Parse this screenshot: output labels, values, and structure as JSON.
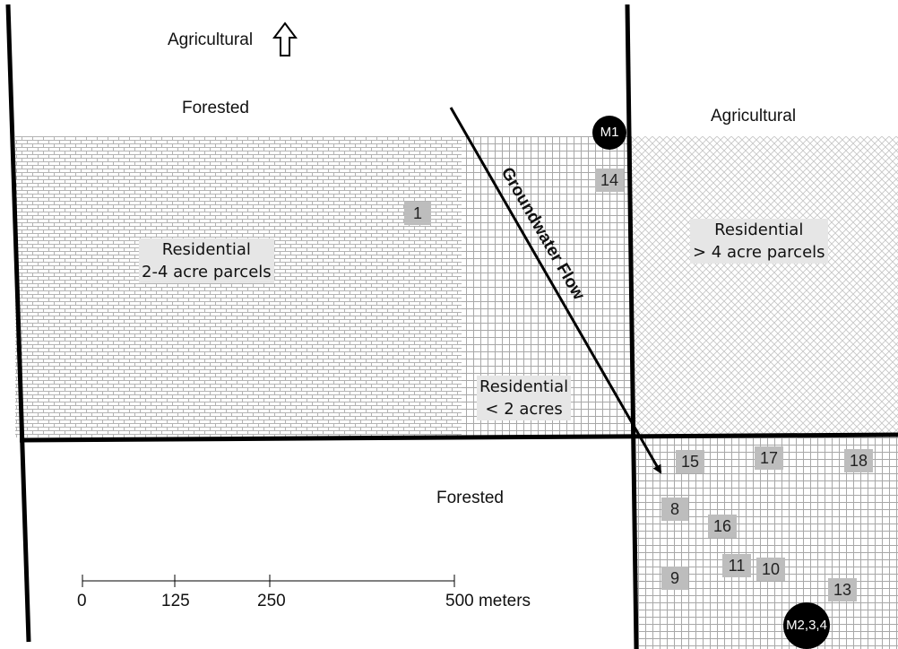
{
  "labels": {
    "agricultural_north": "Agricultural",
    "forested_north": "Forested",
    "agricultural_east": "Agricultural",
    "forested_south": "Forested",
    "groundwater_flow": "Groundwater Flow"
  },
  "residential_zones": {
    "west": {
      "line1": "Residential",
      "line2": "2-4 acre parcels"
    },
    "east": {
      "line1": "Residential",
      "line2": "> 4 acre parcels"
    },
    "center": {
      "line1": "Residential",
      "line2": "< 2 acres"
    }
  },
  "monitoring_wells": {
    "m1": "M1",
    "m234": "M2,3,4"
  },
  "sample_sites": {
    "s1": "1",
    "s14": "14",
    "s15": "15",
    "s17": "17",
    "s18": "18",
    "s8": "8",
    "s16": "16",
    "s9": "9",
    "s11": "11",
    "s10": "10",
    "s13": "13"
  },
  "scale_bar": {
    "t0": "0",
    "t125": "125",
    "t250": "250",
    "t500": "500 meters"
  },
  "colors": {
    "grid_lines": "#b3b3b3",
    "site_box": "#bdbdbd",
    "monitoring_well": "#000000",
    "boundary": "#000000"
  }
}
